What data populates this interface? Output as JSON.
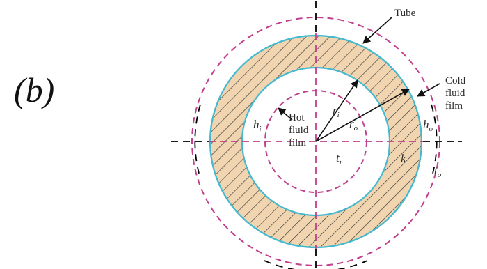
{
  "part_label": "(b)",
  "labels": {
    "tube": "Tube",
    "cold_fluid_film": [
      "Cold",
      "fluid",
      "film"
    ],
    "hot_fluid_film": [
      "Hot",
      "fluid",
      "film"
    ],
    "h_i": {
      "base": "h",
      "sub": "i"
    },
    "h_o": {
      "base": "h",
      "sub": "o"
    },
    "r_i": {
      "base": "r",
      "sub": "i"
    },
    "r_o": {
      "base": "r",
      "sub": "o"
    },
    "t_i": {
      "base": "t",
      "sub": "i"
    },
    "t_o": {
      "base": "t",
      "sub": "o"
    },
    "k": "k"
  },
  "colors": {
    "tube_wall_fill": "#f1d5b1",
    "tube_wall_outline": "#44b9cf",
    "hatch_line": "#333333",
    "dashed_circle": "#c13f8c",
    "axis_line": "#000000"
  }
}
